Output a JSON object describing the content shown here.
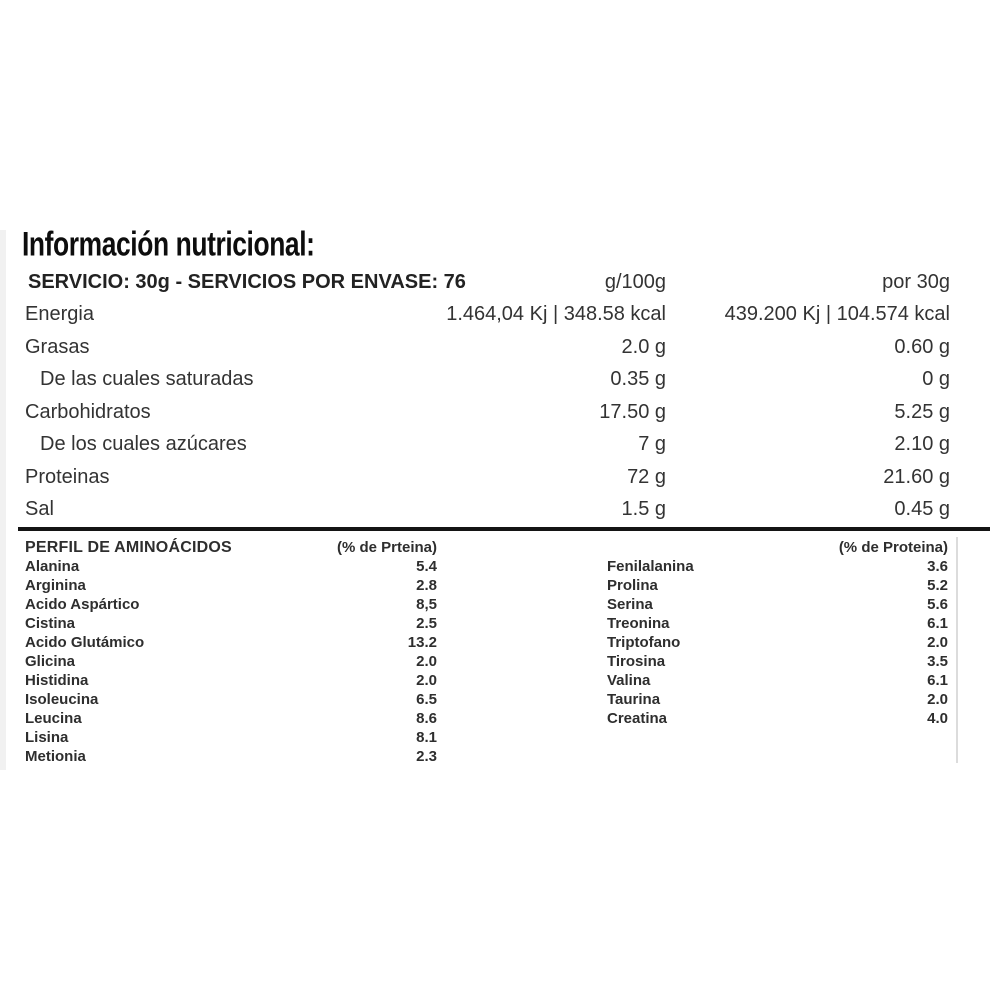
{
  "title": "Información nutricional:",
  "nutrition": {
    "header": {
      "left": "SERVICIO: 30g - SERVICIOS POR ENVASE: 76",
      "col_g100": "g/100g",
      "col_por30": "por 30g"
    },
    "rows": [
      {
        "label": "Energia",
        "indent": false,
        "g100": "1.464,04 Kj | 348.58 kcal",
        "por30": "439.200 Kj | 104.574 kcal"
      },
      {
        "label": "Grasas",
        "indent": false,
        "g100": "2.0 g",
        "por30": "0.60 g"
      },
      {
        "label": "De las cuales saturadas",
        "indent": true,
        "g100": "0.35 g",
        "por30": "0 g"
      },
      {
        "label": "Carbohidratos",
        "indent": false,
        "g100": "17.50 g",
        "por30": "5.25 g"
      },
      {
        "label": "De los cuales azúcares",
        "indent": true,
        "g100": "7 g",
        "por30": "2.10 g"
      },
      {
        "label": "Proteinas",
        "indent": false,
        "g100": "72 g",
        "por30": "21.60 g"
      },
      {
        "label": "Sal",
        "indent": false,
        "g100": "1.5 g",
        "por30": "0.45 g"
      }
    ]
  },
  "amino": {
    "section_title": "PERFIL DE AMINOÁCIDOS",
    "left_header": "(% de Prteina)",
    "right_header": "(% de Proteina)",
    "left": [
      {
        "name": "Alanina",
        "value": "5.4"
      },
      {
        "name": "Arginina",
        "value": "2.8"
      },
      {
        "name": "Acido Aspártico",
        "value": "8,5"
      },
      {
        "name": "Cistina",
        "value": "2.5"
      },
      {
        "name": "Acido Glutámico",
        "value": "13.2"
      },
      {
        "name": "Glicina",
        "value": "2.0"
      },
      {
        "name": "Histidina",
        "value": "2.0"
      },
      {
        "name": "Isoleucina",
        "value": "6.5"
      },
      {
        "name": "Leucina",
        "value": "8.6"
      },
      {
        "name": "Lisina",
        "value": "8.1"
      },
      {
        "name": "Metionia",
        "value": "2.3"
      }
    ],
    "right": [
      {
        "name": "Fenilalanina",
        "value": "3.6"
      },
      {
        "name": "Prolina",
        "value": "5.2"
      },
      {
        "name": "Serina",
        "value": "5.6"
      },
      {
        "name": "Treonina",
        "value": "6.1"
      },
      {
        "name": "Triptofano",
        "value": "2.0"
      },
      {
        "name": "Tirosina",
        "value": "3.5"
      },
      {
        "name": "Valina",
        "value": "6.1"
      },
      {
        "name": "Taurina",
        "value": "2.0"
      },
      {
        "name": "Creatina",
        "value": "4.0"
      }
    ]
  },
  "colors": {
    "background": "#ffffff",
    "text": "#333333",
    "title_text": "#0d0d0d",
    "divider": "#141414"
  }
}
